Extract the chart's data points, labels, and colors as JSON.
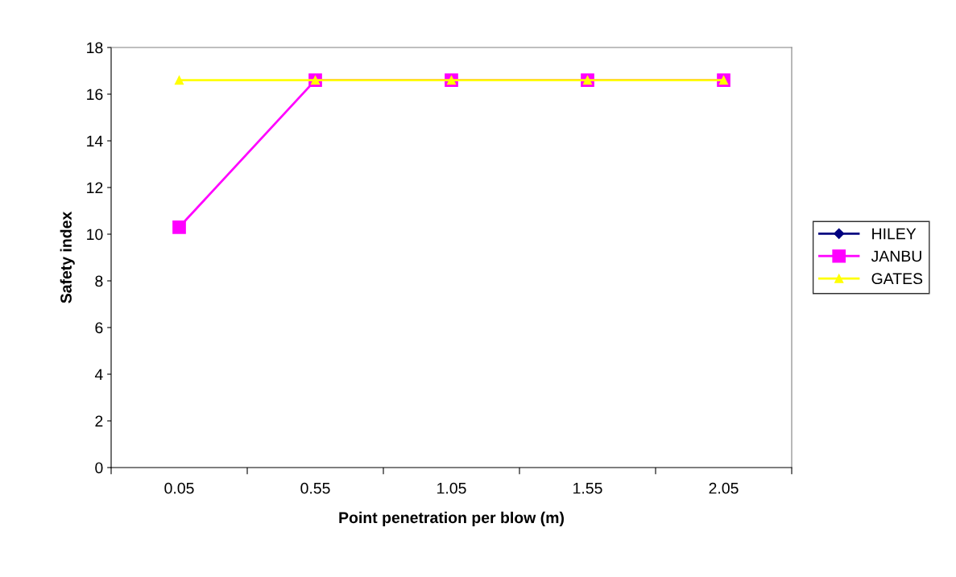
{
  "chart_data": {
    "type": "line",
    "xlabel": "Point penetration per blow (m)",
    "ylabel": "Safety index",
    "categories": [
      "0.05",
      "0.55",
      "1.05",
      "1.55",
      "2.05"
    ],
    "series": [
      {
        "name": "HILEY",
        "color": "#000080",
        "marker": "diamond",
        "values": [
          null,
          null,
          null,
          null,
          null
        ]
      },
      {
        "name": "JANBU",
        "color": "#ff00ff",
        "marker": "square",
        "values": [
          10.3,
          16.6,
          16.6,
          16.6,
          16.6
        ]
      },
      {
        "name": "GATES",
        "color": "#ffff00",
        "marker": "triangle",
        "values": [
          16.6,
          16.6,
          16.6,
          16.6,
          16.6
        ]
      }
    ],
    "ylim": [
      0,
      18
    ],
    "yticks": [
      0,
      2,
      4,
      6,
      8,
      10,
      12,
      14,
      16,
      18
    ],
    "grid": false,
    "legend": "right",
    "line_style": "solid"
  }
}
